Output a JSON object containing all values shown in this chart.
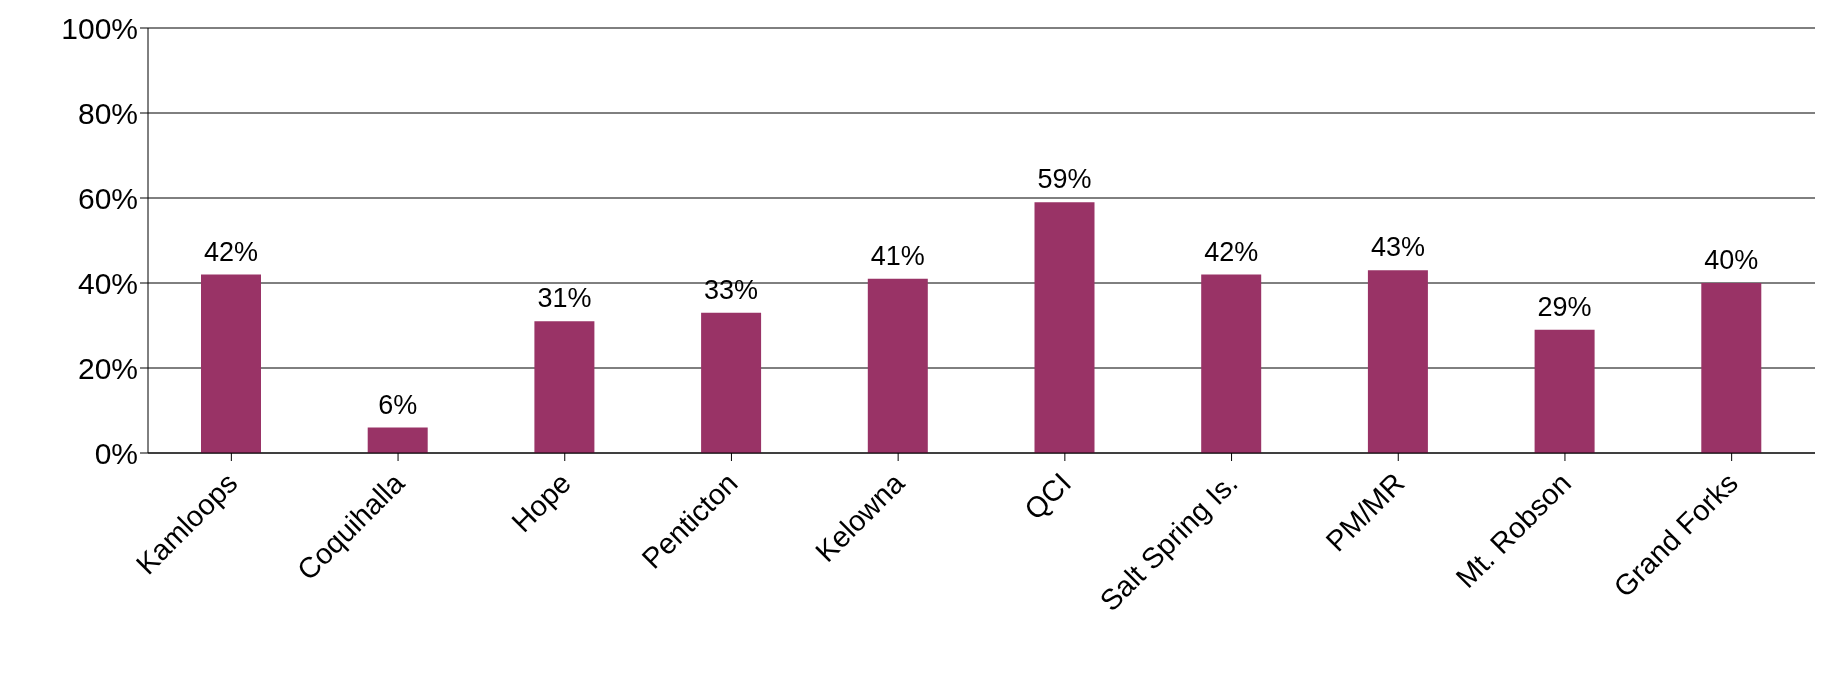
{
  "chart_data": {
    "type": "bar",
    "categories": [
      "Kamloops",
      "Coquihalla",
      "Hope",
      "Penticton",
      "Kelowna",
      "QCI",
      "Salt Spring Is.",
      "PM/MR",
      "Mt. Robson",
      "Grand Forks"
    ],
    "values": [
      42,
      6,
      31,
      33,
      41,
      59,
      42,
      43,
      29,
      40
    ],
    "value_labels": [
      "42%",
      "6%",
      "31%",
      "33%",
      "41%",
      "59%",
      "42%",
      "43%",
      "29%",
      "40%"
    ],
    "color": "#993366",
    "ylim": [
      0,
      100
    ],
    "yticks": [
      {
        "value": 0,
        "label": "0%"
      },
      {
        "value": 20,
        "label": "20%"
      },
      {
        "value": 40,
        "label": "40%"
      },
      {
        "value": 60,
        "label": "60%"
      },
      {
        "value": 80,
        "label": "80%"
      },
      {
        "value": 100,
        "label": "100%"
      }
    ],
    "grid": "y",
    "legend": false
  }
}
